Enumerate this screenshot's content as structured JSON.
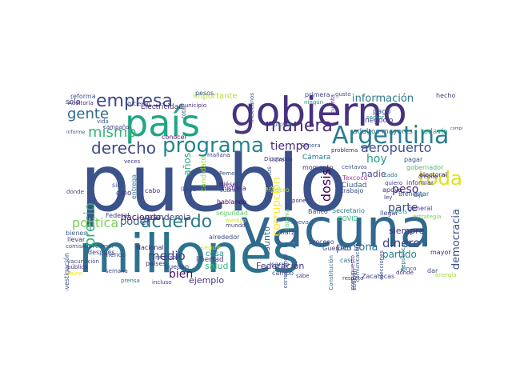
{
  "cloud": {
    "words": [
      {
        "text": "pueblo",
        "color": "#3b528b",
        "vertical": false
      },
      {
        "text": "millones",
        "color": "#2c728e",
        "vertical": false
      },
      {
        "text": "vacuna",
        "color": "#31688e",
        "vertical": false
      },
      {
        "text": "gobierno",
        "color": "#46327e",
        "vertical": false
      },
      {
        "text": "país",
        "color": "#21a685",
        "vertical": false
      },
      {
        "text": "Argentina",
        "color": "#287c8e",
        "vertical": false
      },
      {
        "text": "programa",
        "color": "#25858e",
        "vertical": false
      },
      {
        "text": "toda",
        "color": "#dde318",
        "vertical": false
      },
      {
        "text": "empresa",
        "color": "#404688",
        "vertical": false
      },
      {
        "text": "gente",
        "color": "#31688e",
        "vertical": false
      },
      {
        "text": "derecho",
        "color": "#3e4989",
        "vertical": false
      },
      {
        "text": "acuerdo",
        "color": "#2a788e",
        "vertical": false
      },
      {
        "text": "mismo",
        "color": "#35b779",
        "vertical": false
      },
      {
        "text": "manera",
        "color": "#472c7a",
        "vertical": false
      },
      {
        "text": "precio",
        "color": "#2db27d",
        "vertical": true
      },
      {
        "text": "aeropuerto",
        "color": "#3b528b",
        "vertical": false
      },
      {
        "text": "dosis",
        "color": "#440154",
        "vertical": true
      },
      {
        "text": "información",
        "color": "#2a788e",
        "vertical": false
      },
      {
        "text": "tiempo",
        "color": "#482878",
        "vertical": false
      },
      {
        "text": "política",
        "color": "#7ad151",
        "vertical": false
      },
      {
        "text": "poder",
        "color": "#38588c",
        "vertical": false
      },
      {
        "text": "dinero",
        "color": "#414487",
        "vertical": false
      },
      {
        "text": "democracia",
        "color": "#3b528b",
        "vertical": true
      },
      {
        "text": "medio",
        "color": "#443a83",
        "vertical": false
      },
      {
        "text": "bien",
        "color": "#470e61",
        "vertical": false
      },
      {
        "text": "corrupción",
        "color": "#fde725",
        "vertical": true
      },
      {
        "text": "parte",
        "color": "#404688",
        "vertical": false
      },
      {
        "text": "peso",
        "color": "#472d7b",
        "vertical": false
      },
      {
        "text": "hoy",
        "color": "#1f9e89",
        "vertical": false
      },
      {
        "text": "ejemplo",
        "color": "#46337f",
        "vertical": false
      },
      {
        "text": "partido",
        "color": "#26828e",
        "vertical": false
      },
      {
        "text": "persona",
        "color": "#2f6c8e",
        "vertical": false
      },
      {
        "text": "siempre",
        "color": "#472a7a",
        "vertical": false
      },
      {
        "text": "Federación",
        "color": "#453781",
        "vertical": false
      },
      {
        "text": "años",
        "color": "#28ae80",
        "vertical": true
      },
      {
        "text": "asunto",
        "color": "#2e6e8e",
        "vertical": true
      },
      {
        "text": "salud",
        "color": "#3aba76",
        "vertical": false
      },
      {
        "text": "cosa",
        "color": "#20928c",
        "vertical": false
      },
      {
        "text": "haciendo",
        "color": "#440154",
        "vertical": false
      },
      {
        "text": "importante",
        "color": "#b5de2b",
        "vertical": false
      },
      {
        "text": "nadie",
        "color": "#414487",
        "vertical": false
      },
      {
        "text": "candidato",
        "color": "#9bd93c",
        "vertical": true
      },
      {
        "text": "pandemia",
        "color": "#3e4989",
        "vertical": false
      },
      {
        "text": "Ciudad",
        "color": "#3b528b",
        "vertical": false
      },
      {
        "text": "Texcoco",
        "color": "#ad3da0",
        "vertical": false
      },
      {
        "text": "libertad",
        "color": "#453882",
        "vertical": false
      },
      {
        "text": "historia",
        "color": "#481a6c",
        "vertical": false
      },
      {
        "text": "sólo",
        "color": "#404688",
        "vertical": false
      },
      {
        "text": "reforma",
        "color": "#39568c",
        "vertical": false
      },
      {
        "text": "Electricidad",
        "color": "#482878",
        "vertical": false
      },
      {
        "text": "Auditoría",
        "color": "#472c7a",
        "vertical": false
      },
      {
        "text": "municipio",
        "color": "#46307e",
        "vertical": false
      },
      {
        "text": "pesos",
        "color": "#3b528b",
        "vertical": false
      },
      {
        "text": "primera",
        "color": "#3f4889",
        "vertical": false
      },
      {
        "text": "gusto",
        "color": "#3b528b",
        "vertical": false
      },
      {
        "text": "hecho",
        "color": "#433d84",
        "vertical": false
      },
      {
        "text": "adultos mayores",
        "color": "#2d708e",
        "vertical": false
      },
      {
        "text": "todavía",
        "color": "#1fa287",
        "vertical": false
      },
      {
        "text": "conocer",
        "color": "#48186a",
        "vertical": false
      },
      {
        "text": "Diputados",
        "color": "#46327e",
        "vertical": false
      },
      {
        "text": "Cámara",
        "color": "#2a788e",
        "vertical": false
      },
      {
        "text": "momento",
        "color": "#472f7d",
        "vertical": false
      },
      {
        "text": "mañana",
        "color": "#404387",
        "vertical": false
      },
      {
        "text": "libre",
        "color": "#3e4989",
        "vertical": false
      },
      {
        "text": "último",
        "color": "#25848e",
        "vertical": false
      },
      {
        "text": "centavos",
        "color": "#39568c",
        "vertical": false
      },
      {
        "text": "quiero",
        "color": "#404387",
        "vertical": false
      },
      {
        "text": "cada",
        "color": "#2a768e",
        "vertical": false
      },
      {
        "text": "gobernador",
        "color": "#44bf70",
        "vertical": false
      },
      {
        "text": "informar",
        "color": "#453882",
        "vertical": false
      },
      {
        "text": "Bienestar",
        "color": "#2f6b8e",
        "vertical": false
      },
      {
        "text": "apoyo",
        "color": "#46307e",
        "vertical": false
      },
      {
        "text": "ley",
        "color": "#453781",
        "vertical": false
      },
      {
        "text": "crisis",
        "color": "#22a884",
        "vertical": false
      },
      {
        "text": "llegar",
        "color": "#3e4c8a",
        "vertical": false
      },
      {
        "text": "general",
        "color": "#443b84",
        "vertical": false
      },
      {
        "text": "estrategia",
        "color": "#73d056",
        "vertical": false
      },
      {
        "text": "Secretario",
        "color": "#27808e",
        "vertical": false
      },
      {
        "text": "Nacional",
        "color": "#482475",
        "vertical": false
      },
      {
        "text": "Federal",
        "color": "#443983",
        "vertical": false
      },
      {
        "text": "países",
        "color": "#46337f",
        "vertical": false
      },
      {
        "text": "pueden",
        "color": "#424086",
        "vertical": false
      },
      {
        "text": "alrededor",
        "color": "#3d4e8a",
        "vertical": false
      },
      {
        "text": "mundo",
        "color": "#404588",
        "vertical": false
      },
      {
        "text": "seguridad",
        "color": "#5ec962",
        "vertical": false
      },
      {
        "text": "entrega",
        "color": "#2c718e",
        "vertical": true
      },
      {
        "text": "cabo",
        "color": "#472c7a",
        "vertical": false
      },
      {
        "text": "sino",
        "color": "#3b528b",
        "vertical": false
      },
      {
        "text": "creo",
        "color": "#46327e",
        "vertical": false
      },
      {
        "text": "veces",
        "color": "#453882",
        "vertical": false
      },
      {
        "text": "después",
        "color": "#3d4d8a",
        "vertical": false
      },
      {
        "text": "vacunación",
        "color": "#3e4a89",
        "vertical": false
      },
      {
        "text": "investigación",
        "color": "#3b528b",
        "vertical": true
      },
      {
        "text": "bienes",
        "color": "#3b528b",
        "vertical": false
      },
      {
        "text": "comisión Federal",
        "color": "#39558c",
        "vertical": false
      },
      {
        "text": "llevar",
        "color": "#453581",
        "vertical": false
      },
      {
        "text": "semana",
        "color": "#3d4e8a",
        "vertical": false
      },
      {
        "text": "prensa",
        "color": "#2c738e",
        "vertical": false
      },
      {
        "text": "incluso",
        "color": "#404588",
        "vertical": false
      },
      {
        "text": "campo",
        "color": "#3e4a89",
        "vertical": false
      },
      {
        "text": "cargo",
        "color": "#3b528b",
        "vertical": false
      },
      {
        "text": "sabe",
        "color": "#443a83",
        "vertical": false
      },
      {
        "text": "respeto",
        "color": "#433e85",
        "vertical": false
      },
      {
        "text": "Zacatecas",
        "color": "#3f4788",
        "vertical": false
      },
      {
        "text": "casi",
        "color": "#2a768e",
        "vertical": false
      },
      {
        "text": "mayor",
        "color": "#482475",
        "vertical": false
      },
      {
        "text": "energía",
        "color": "#9fda3a",
        "vertical": false
      },
      {
        "text": "proceso",
        "color": "#453781",
        "vertical": false
      },
      {
        "text": "Guerrero",
        "color": "#3f4889",
        "vertical": false
      },
      {
        "text": "marzo",
        "color": "#404588",
        "vertical": false
      },
      {
        "text": "nuevo",
        "color": "#34618d",
        "vertical": false
      },
      {
        "text": "COVID",
        "color": "#31b57b",
        "vertical": false
      },
      {
        "text": "Banco",
        "color": "#3b528b",
        "vertical": false
      },
      {
        "text": "trabajo",
        "color": "#3d4d8a",
        "vertical": false
      },
      {
        "text": "Madero",
        "color": "#c2df23",
        "vertical": false
      },
      {
        "text": "poner",
        "color": "#472f7d",
        "vertical": false
      },
      {
        "text": "Pemex",
        "color": "#3b528b",
        "vertical": false
      },
      {
        "text": "diésel",
        "color": "#482071",
        "vertical": false
      },
      {
        "text": "hablando",
        "color": "#46085c",
        "vertical": false
      },
      {
        "text": "cuánto",
        "color": "#3e4989",
        "vertical": false
      },
      {
        "text": "médico",
        "color": "#dde318",
        "vertical": false
      },
      {
        "text": "seguir",
        "color": "#d8e219",
        "vertical": false
      },
      {
        "text": "recurso",
        "color": "#3d4e8a",
        "vertical": false
      },
      {
        "text": "menos",
        "color": "#404588",
        "vertical": false
      },
      {
        "text": "favor",
        "color": "#e5e419",
        "vertical": false
      },
      {
        "text": "pública",
        "color": "#452a79",
        "vertical": false
      },
      {
        "text": "Sonora",
        "color": "#3b528b",
        "vertical": false
      },
      {
        "text": "problema",
        "color": "#472c7a",
        "vertical": false
      },
      {
        "text": "pagar",
        "color": "#3b528b",
        "vertical": false
      },
      {
        "text": "electoral",
        "color": "#472878",
        "vertical": false
      },
      {
        "text": "crédito",
        "color": "#404588",
        "vertical": false
      },
      {
        "text": "dijo",
        "color": "#3e4c8a",
        "vertical": false
      },
      {
        "text": "pago",
        "color": "#3b528b",
        "vertical": false
      },
      {
        "text": "sector",
        "color": "#25858e",
        "vertical": false
      },
      {
        "text": "negocio",
        "color": "#3e4989",
        "vertical": false
      },
      {
        "text": "dar",
        "color": "#3b528b",
        "vertical": false
      },
      {
        "text": "cinco",
        "color": "#404588",
        "vertical": false
      },
      {
        "text": "dónde",
        "color": "#472a7a",
        "vertical": false
      },
      {
        "text": "situación",
        "color": "#3d4e8a",
        "vertical": true
      },
      {
        "text": "comunicación",
        "color": "#3b528b",
        "vertical": true
      },
      {
        "text": "elecciones",
        "color": "#3b528b",
        "vertical": true
      },
      {
        "text": "República",
        "color": "#2c728e",
        "vertical": true
      },
      {
        "text": "presupuesto",
        "color": "#46337f",
        "vertical": true
      },
      {
        "text": "corresponde",
        "color": "#3b528b",
        "vertical": true
      },
      {
        "text": "Constitución",
        "color": "#31678e",
        "vertical": true
      },
      {
        "text": "sistema",
        "color": "#5ec962",
        "vertical": true
      },
      {
        "text": "ciudadanos",
        "color": "#3d4e8a",
        "vertical": true
      },
      {
        "text": "total",
        "color": "#3b528b",
        "vertical": true
      },
      {
        "text": "compromiso",
        "color": "#414487",
        "vertical": false
      },
      {
        "text": "informe",
        "color": "#3b528b",
        "vertical": false
      },
      {
        "text": "hicieron",
        "color": "#3e4989",
        "vertical": false
      },
      {
        "text": "campaña",
        "color": "#433d84",
        "vertical": false
      },
      {
        "text": "vida",
        "color": "#3b528b",
        "vertical": false
      },
      {
        "text": "mexicanos",
        "color": "#3f4889",
        "vertical": true
      },
      {
        "text": "ningún",
        "color": "#21918c",
        "vertical": false
      },
      {
        "text": "cuenta",
        "color": "#472878",
        "vertical": true
      },
      {
        "text": "llega",
        "color": "#404588",
        "vertical": false
      },
      {
        "text": "donde",
        "color": "#3e4a89",
        "vertical": false
      }
    ]
  }
}
